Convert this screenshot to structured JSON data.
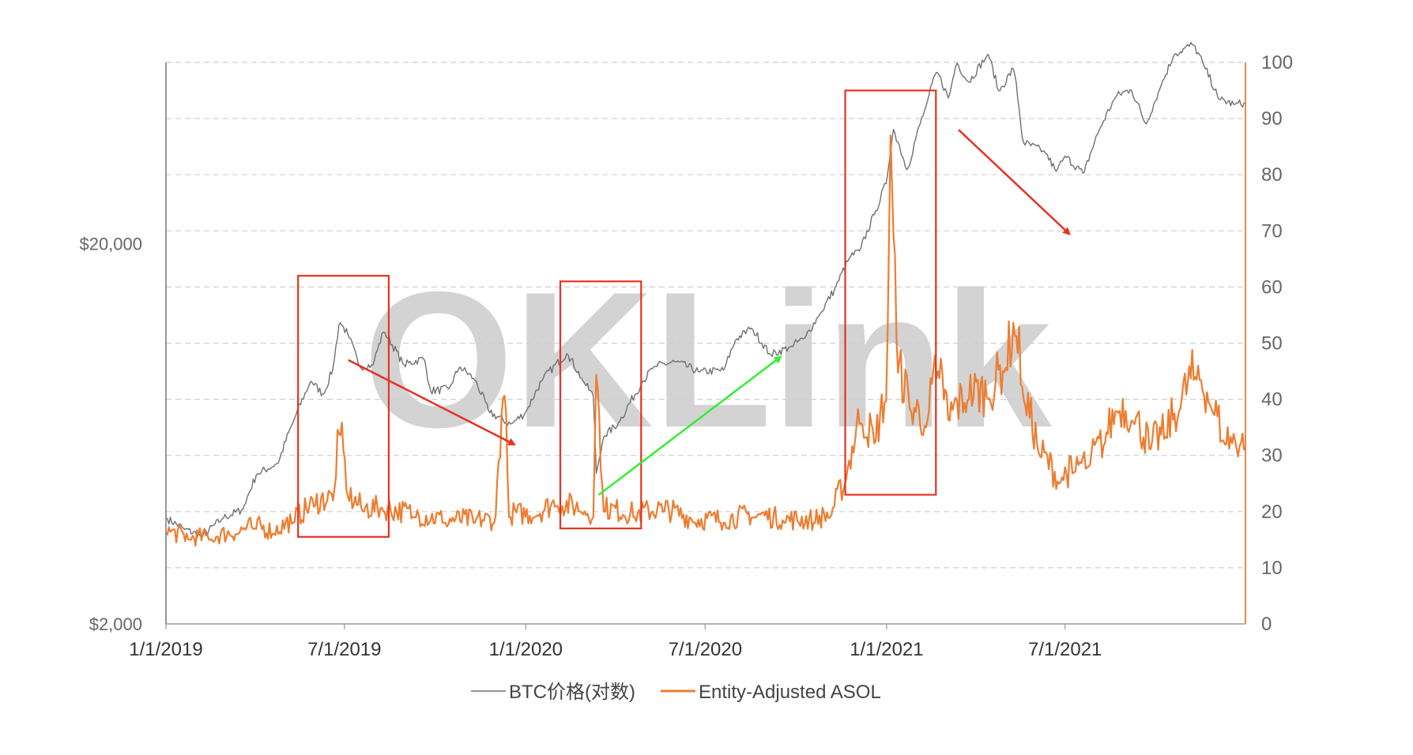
{
  "watermark": "OKLink",
  "chart_data": {
    "type": "line",
    "title": "",
    "x_axis": {
      "type": "date",
      "range": [
        "2019-01-01",
        "2021-12-31"
      ],
      "ticks": [
        {
          "date": "2019-01-01",
          "label": "1/1/2019"
        },
        {
          "date": "2019-07-01",
          "label": "7/1/2019"
        },
        {
          "date": "2020-01-01",
          "label": "1/1/2020"
        },
        {
          "date": "2020-07-01",
          "label": "7/1/2020"
        },
        {
          "date": "2021-01-01",
          "label": "1/1/2021"
        },
        {
          "date": "2021-07-01",
          "label": "7/1/2021"
        }
      ]
    },
    "y_left": {
      "scale": "log",
      "range": [
        2000,
        60000
      ],
      "ticks": [
        {
          "value": 2000,
          "label": "$2,000"
        },
        {
          "value": 20000,
          "label": "$20,000"
        }
      ]
    },
    "y_right": {
      "scale": "linear",
      "range": [
        0,
        100
      ],
      "ticks": [
        0,
        10,
        20,
        30,
        40,
        50,
        60,
        70,
        80,
        90,
        100
      ]
    },
    "grid": "horizontal dashed",
    "legend": "bottom-center",
    "colors": {
      "btc": "#707070",
      "asol": "#ED7D31",
      "box": "#E53323",
      "arrow_down": "#E53323",
      "arrow_up": "#33EE33",
      "grid": "#cfcfcf"
    },
    "series": [
      {
        "name": "BTC价格(对数)",
        "axis": "left",
        "color": "#707070",
        "points": [
          [
            "2019-01-01",
            3800
          ],
          [
            "2019-01-20",
            3550
          ],
          [
            "2019-02-07",
            3400
          ],
          [
            "2019-02-28",
            3800
          ],
          [
            "2019-03-20",
            4000
          ],
          [
            "2019-04-03",
            4950
          ],
          [
            "2019-04-25",
            5300
          ],
          [
            "2019-05-12",
            7000
          ],
          [
            "2019-05-28",
            8700
          ],
          [
            "2019-06-10",
            8000
          ],
          [
            "2019-06-20",
            9500
          ],
          [
            "2019-06-26",
            12500
          ],
          [
            "2019-07-05",
            11500
          ],
          [
            "2019-07-16",
            9500
          ],
          [
            "2019-07-30",
            9600
          ],
          [
            "2019-08-10",
            11800
          ],
          [
            "2019-08-30",
            9600
          ],
          [
            "2019-09-20",
            10000
          ],
          [
            "2019-09-26",
            8200
          ],
          [
            "2019-10-15",
            8300
          ],
          [
            "2019-10-26",
            9500
          ],
          [
            "2019-11-10",
            8800
          ],
          [
            "2019-11-25",
            7200
          ],
          [
            "2019-12-17",
            6700
          ],
          [
            "2020-01-01",
            7200
          ],
          [
            "2020-01-18",
            8800
          ],
          [
            "2020-02-12",
            10300
          ],
          [
            "2020-02-28",
            8700
          ],
          [
            "2020-03-10",
            7900
          ],
          [
            "2020-03-12",
            4900
          ],
          [
            "2020-03-20",
            6200
          ],
          [
            "2020-04-05",
            6800
          ],
          [
            "2020-04-29",
            8700
          ],
          [
            "2020-05-10",
            9500
          ],
          [
            "2020-06-01",
            9800
          ],
          [
            "2020-06-25",
            9200
          ],
          [
            "2020-07-20",
            9300
          ],
          [
            "2020-08-01",
            11200
          ],
          [
            "2020-08-17",
            12000
          ],
          [
            "2020-09-05",
            10200
          ],
          [
            "2020-09-25",
            10700
          ],
          [
            "2020-10-10",
            11300
          ],
          [
            "2020-10-25",
            13000
          ],
          [
            "2020-11-10",
            15300
          ],
          [
            "2020-11-25",
            18500
          ],
          [
            "2020-12-05",
            19200
          ],
          [
            "2020-12-20",
            24000
          ],
          [
            "2021-01-01",
            29000
          ],
          [
            "2021-01-08",
            40000
          ],
          [
            "2021-01-22",
            31000
          ],
          [
            "2021-02-10",
            46000
          ],
          [
            "2021-02-21",
            57000
          ],
          [
            "2021-03-05",
            48000
          ],
          [
            "2021-03-13",
            60000
          ],
          [
            "2021-03-25",
            53000
          ],
          [
            "2021-04-14",
            63000
          ],
          [
            "2021-04-25",
            50000
          ],
          [
            "2021-05-10",
            58000
          ],
          [
            "2021-05-19",
            37000
          ],
          [
            "2021-06-10",
            35000
          ],
          [
            "2021-06-22",
            31000
          ],
          [
            "2021-07-01",
            34000
          ],
          [
            "2021-07-20",
            30500
          ],
          [
            "2021-08-05",
            40000
          ],
          [
            "2021-08-22",
            49000
          ],
          [
            "2021-09-06",
            51000
          ],
          [
            "2021-09-21",
            41000
          ],
          [
            "2021-10-05",
            51000
          ],
          [
            "2021-10-20",
            63000
          ],
          [
            "2021-11-08",
            67000
          ],
          [
            "2021-11-20",
            58000
          ],
          [
            "2021-12-04",
            48000
          ],
          [
            "2021-12-20",
            46500
          ],
          [
            "2021-12-31",
            47000
          ]
        ]
      },
      {
        "name": "Entity-Adjusted ASOL",
        "axis": "right",
        "color": "#ED7D31",
        "points": [
          [
            "2019-01-01",
            16
          ],
          [
            "2019-01-25",
            15
          ],
          [
            "2019-02-15",
            15
          ],
          [
            "2019-03-15",
            16
          ],
          [
            "2019-04-01",
            17
          ],
          [
            "2019-04-20",
            16
          ],
          [
            "2019-05-10",
            18
          ],
          [
            "2019-06-01",
            21
          ],
          [
            "2019-06-20",
            22
          ],
          [
            "2019-06-26",
            35
          ],
          [
            "2019-07-05",
            22
          ],
          [
            "2019-07-20",
            20
          ],
          [
            "2019-08-10",
            20
          ],
          [
            "2019-09-10",
            19
          ],
          [
            "2019-10-10",
            18
          ],
          [
            "2019-11-10",
            18
          ],
          [
            "2019-12-01",
            18
          ],
          [
            "2019-12-10",
            43
          ],
          [
            "2019-12-15",
            19
          ],
          [
            "2020-01-10",
            19
          ],
          [
            "2020-02-01",
            21
          ],
          [
            "2020-02-25",
            20
          ],
          [
            "2020-03-10",
            19
          ],
          [
            "2020-03-12",
            46
          ],
          [
            "2020-03-20",
            20
          ],
          [
            "2020-04-20",
            19
          ],
          [
            "2020-05-20",
            20
          ],
          [
            "2020-06-20",
            18
          ],
          [
            "2020-07-20",
            18
          ],
          [
            "2020-08-20",
            19
          ],
          [
            "2020-09-20",
            18
          ],
          [
            "2020-10-20",
            18
          ],
          [
            "2020-11-05",
            19
          ],
          [
            "2020-11-20",
            25
          ],
          [
            "2020-12-05",
            36
          ],
          [
            "2020-12-20",
            32
          ],
          [
            "2021-01-01",
            40
          ],
          [
            "2021-01-05",
            87
          ],
          [
            "2021-01-12",
            45
          ],
          [
            "2021-01-25",
            38
          ],
          [
            "2021-02-10",
            35
          ],
          [
            "2021-02-22",
            45
          ],
          [
            "2021-03-05",
            36
          ],
          [
            "2021-03-25",
            40
          ],
          [
            "2021-04-15",
            40
          ],
          [
            "2021-05-01",
            45
          ],
          [
            "2021-05-12",
            52
          ],
          [
            "2021-05-20",
            40
          ],
          [
            "2021-06-05",
            30
          ],
          [
            "2021-06-25",
            25
          ],
          [
            "2021-07-10",
            27
          ],
          [
            "2021-07-25",
            28
          ],
          [
            "2021-08-10",
            32
          ],
          [
            "2021-08-25",
            38
          ],
          [
            "2021-09-08",
            36
          ],
          [
            "2021-09-25",
            31
          ],
          [
            "2021-10-10",
            33
          ],
          [
            "2021-10-25",
            38
          ],
          [
            "2021-11-10",
            44
          ],
          [
            "2021-11-25",
            39
          ],
          [
            "2021-12-10",
            32
          ],
          [
            "2021-12-31",
            31
          ]
        ]
      }
    ],
    "annotations": [
      {
        "type": "box",
        "x_range": [
          "2019-05-15",
          "2019-08-15"
        ],
        "y_right_range": [
          15.5,
          62
        ]
      },
      {
        "type": "box",
        "x_range": [
          "2020-02-05",
          "2020-04-27"
        ],
        "y_right_range": [
          17,
          61
        ]
      },
      {
        "type": "box",
        "x_range": [
          "2020-11-20",
          "2021-02-20"
        ],
        "y_right_range": [
          23,
          95
        ]
      },
      {
        "type": "box_arrow",
        "color": "down",
        "from": [
          "2019-07-05",
          47
        ],
        "to": [
          "2019-12-20",
          32
        ]
      },
      {
        "type": "box_arrow",
        "color": "up",
        "from": [
          "2020-03-15",
          23
        ],
        "to": [
          "2020-09-15",
          47.5
        ]
      },
      {
        "type": "box_arrow",
        "color": "down",
        "from": [
          "2021-03-15",
          88
        ],
        "to": [
          "2021-07-05",
          69.5
        ]
      }
    ]
  }
}
